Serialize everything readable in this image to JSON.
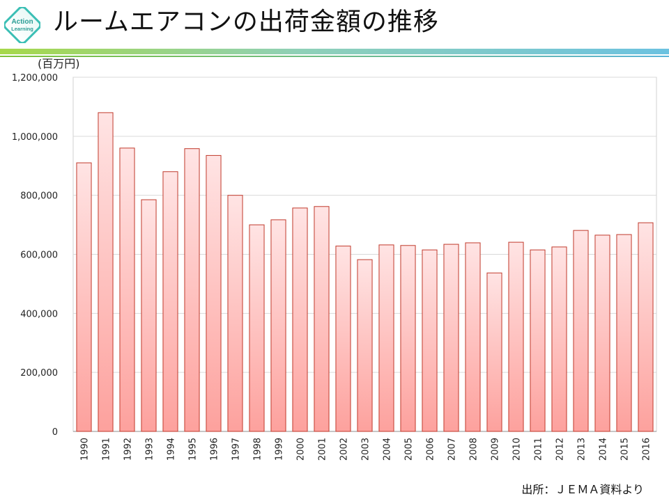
{
  "header": {
    "title": "ルームエアコンの出荷金額の推移",
    "logo_text_top": "Action",
    "logo_text_bottom": "Learning",
    "logo_color": "#3bbfb5",
    "bar_colors": [
      "#a6d84a",
      "#6cc2e0"
    ]
  },
  "unit_label": "(百万円)",
  "source_note": "出所：ＪＥＭＡ資料より",
  "chart_data": {
    "type": "bar",
    "title": "ルームエアコンの出荷金額の推移",
    "xlabel": "",
    "ylabel": "(百万円)",
    "ylim": [
      0,
      1200000
    ],
    "yticks": [
      0,
      200000,
      400000,
      600000,
      800000,
      1000000,
      1200000
    ],
    "ytick_labels": [
      "0",
      "200,000",
      "400,000",
      "600,000",
      "800,000",
      "1,000,000",
      "1,200,000"
    ],
    "grid": true,
    "bar_fill_top": "#ffe4e4",
    "bar_fill_bottom": "#fda19d",
    "bar_stroke": "#c0392b",
    "categories": [
      "1990",
      "1991",
      "1992",
      "1993",
      "1994",
      "1995",
      "1996",
      "1997",
      "1998",
      "1999",
      "2000",
      "2001",
      "2002",
      "2003",
      "2004",
      "2005",
      "2006",
      "2007",
      "2008",
      "2009",
      "2010",
      "2011",
      "2012",
      "2013",
      "2014",
      "2015",
      "2016"
    ],
    "values": [
      910000,
      1080000,
      960000,
      785000,
      880000,
      958000,
      935000,
      800000,
      700000,
      717000,
      757000,
      762000,
      628000,
      582000,
      632000,
      630000,
      615000,
      634000,
      639000,
      537000,
      641000,
      615000,
      625000,
      681000,
      665000,
      667000,
      707000
    ]
  }
}
